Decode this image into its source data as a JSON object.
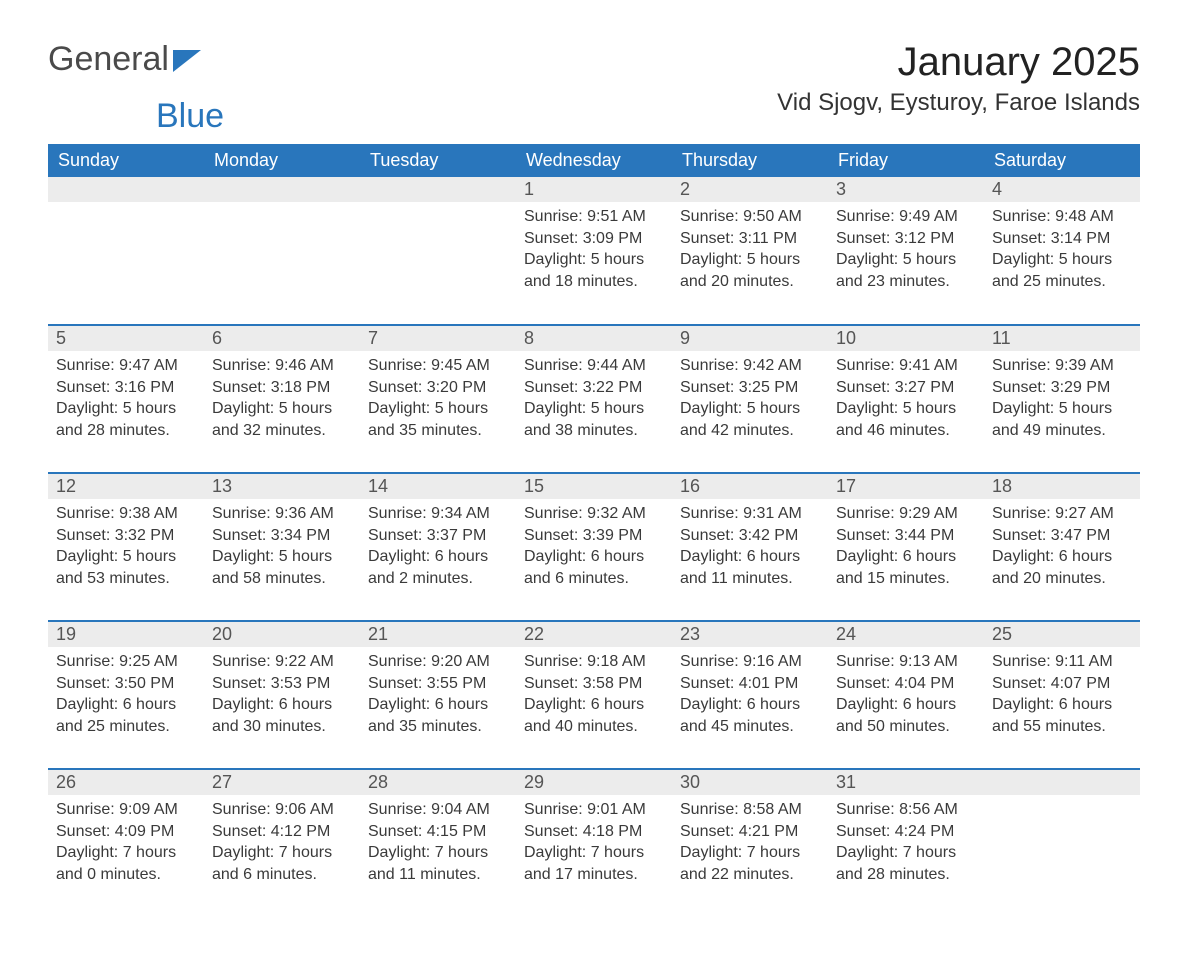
{
  "logo": {
    "text_general": "General",
    "text_blue": "Blue",
    "accent_color": "#2976bc"
  },
  "title": {
    "month": "January 2025",
    "location": "Vid Sjogv, Eysturoy, Faroe Islands"
  },
  "styling": {
    "header_bg": "#2976bc",
    "header_text": "#ffffff",
    "daynum_bg": "#ececec",
    "week_border": "#2976bc",
    "body_text": "#3a3a3a",
    "page_bg": "#ffffff",
    "header_fontsize": 18,
    "body_fontsize": 16,
    "title_fontsize": 40,
    "location_fontsize": 24
  },
  "weekdays": [
    "Sunday",
    "Monday",
    "Tuesday",
    "Wednesday",
    "Thursday",
    "Friday",
    "Saturday"
  ],
  "weeks": [
    [
      {
        "n": "",
        "sr": "",
        "ss": "",
        "dl": ""
      },
      {
        "n": "",
        "sr": "",
        "ss": "",
        "dl": ""
      },
      {
        "n": "",
        "sr": "",
        "ss": "",
        "dl": ""
      },
      {
        "n": "1",
        "sr": "Sunrise: 9:51 AM",
        "ss": "Sunset: 3:09 PM",
        "dl": "Daylight: 5 hours and 18 minutes."
      },
      {
        "n": "2",
        "sr": "Sunrise: 9:50 AM",
        "ss": "Sunset: 3:11 PM",
        "dl": "Daylight: 5 hours and 20 minutes."
      },
      {
        "n": "3",
        "sr": "Sunrise: 9:49 AM",
        "ss": "Sunset: 3:12 PM",
        "dl": "Daylight: 5 hours and 23 minutes."
      },
      {
        "n": "4",
        "sr": "Sunrise: 9:48 AM",
        "ss": "Sunset: 3:14 PM",
        "dl": "Daylight: 5 hours and 25 minutes."
      }
    ],
    [
      {
        "n": "5",
        "sr": "Sunrise: 9:47 AM",
        "ss": "Sunset: 3:16 PM",
        "dl": "Daylight: 5 hours and 28 minutes."
      },
      {
        "n": "6",
        "sr": "Sunrise: 9:46 AM",
        "ss": "Sunset: 3:18 PM",
        "dl": "Daylight: 5 hours and 32 minutes."
      },
      {
        "n": "7",
        "sr": "Sunrise: 9:45 AM",
        "ss": "Sunset: 3:20 PM",
        "dl": "Daylight: 5 hours and 35 minutes."
      },
      {
        "n": "8",
        "sr": "Sunrise: 9:44 AM",
        "ss": "Sunset: 3:22 PM",
        "dl": "Daylight: 5 hours and 38 minutes."
      },
      {
        "n": "9",
        "sr": "Sunrise: 9:42 AM",
        "ss": "Sunset: 3:25 PM",
        "dl": "Daylight: 5 hours and 42 minutes."
      },
      {
        "n": "10",
        "sr": "Sunrise: 9:41 AM",
        "ss": "Sunset: 3:27 PM",
        "dl": "Daylight: 5 hours and 46 minutes."
      },
      {
        "n": "11",
        "sr": "Sunrise: 9:39 AM",
        "ss": "Sunset: 3:29 PM",
        "dl": "Daylight: 5 hours and 49 minutes."
      }
    ],
    [
      {
        "n": "12",
        "sr": "Sunrise: 9:38 AM",
        "ss": "Sunset: 3:32 PM",
        "dl": "Daylight: 5 hours and 53 minutes."
      },
      {
        "n": "13",
        "sr": "Sunrise: 9:36 AM",
        "ss": "Sunset: 3:34 PM",
        "dl": "Daylight: 5 hours and 58 minutes."
      },
      {
        "n": "14",
        "sr": "Sunrise: 9:34 AM",
        "ss": "Sunset: 3:37 PM",
        "dl": "Daylight: 6 hours and 2 minutes."
      },
      {
        "n": "15",
        "sr": "Sunrise: 9:32 AM",
        "ss": "Sunset: 3:39 PM",
        "dl": "Daylight: 6 hours and 6 minutes."
      },
      {
        "n": "16",
        "sr": "Sunrise: 9:31 AM",
        "ss": "Sunset: 3:42 PM",
        "dl": "Daylight: 6 hours and 11 minutes."
      },
      {
        "n": "17",
        "sr": "Sunrise: 9:29 AM",
        "ss": "Sunset: 3:44 PM",
        "dl": "Daylight: 6 hours and 15 minutes."
      },
      {
        "n": "18",
        "sr": "Sunrise: 9:27 AM",
        "ss": "Sunset: 3:47 PM",
        "dl": "Daylight: 6 hours and 20 minutes."
      }
    ],
    [
      {
        "n": "19",
        "sr": "Sunrise: 9:25 AM",
        "ss": "Sunset: 3:50 PM",
        "dl": "Daylight: 6 hours and 25 minutes."
      },
      {
        "n": "20",
        "sr": "Sunrise: 9:22 AM",
        "ss": "Sunset: 3:53 PM",
        "dl": "Daylight: 6 hours and 30 minutes."
      },
      {
        "n": "21",
        "sr": "Sunrise: 9:20 AM",
        "ss": "Sunset: 3:55 PM",
        "dl": "Daylight: 6 hours and 35 minutes."
      },
      {
        "n": "22",
        "sr": "Sunrise: 9:18 AM",
        "ss": "Sunset: 3:58 PM",
        "dl": "Daylight: 6 hours and 40 minutes."
      },
      {
        "n": "23",
        "sr": "Sunrise: 9:16 AM",
        "ss": "Sunset: 4:01 PM",
        "dl": "Daylight: 6 hours and 45 minutes."
      },
      {
        "n": "24",
        "sr": "Sunrise: 9:13 AM",
        "ss": "Sunset: 4:04 PM",
        "dl": "Daylight: 6 hours and 50 minutes."
      },
      {
        "n": "25",
        "sr": "Sunrise: 9:11 AM",
        "ss": "Sunset: 4:07 PM",
        "dl": "Daylight: 6 hours and 55 minutes."
      }
    ],
    [
      {
        "n": "26",
        "sr": "Sunrise: 9:09 AM",
        "ss": "Sunset: 4:09 PM",
        "dl": "Daylight: 7 hours and 0 minutes."
      },
      {
        "n": "27",
        "sr": "Sunrise: 9:06 AM",
        "ss": "Sunset: 4:12 PM",
        "dl": "Daylight: 7 hours and 6 minutes."
      },
      {
        "n": "28",
        "sr": "Sunrise: 9:04 AM",
        "ss": "Sunset: 4:15 PM",
        "dl": "Daylight: 7 hours and 11 minutes."
      },
      {
        "n": "29",
        "sr": "Sunrise: 9:01 AM",
        "ss": "Sunset: 4:18 PM",
        "dl": "Daylight: 7 hours and 17 minutes."
      },
      {
        "n": "30",
        "sr": "Sunrise: 8:58 AM",
        "ss": "Sunset: 4:21 PM",
        "dl": "Daylight: 7 hours and 22 minutes."
      },
      {
        "n": "31",
        "sr": "Sunrise: 8:56 AM",
        "ss": "Sunset: 4:24 PM",
        "dl": "Daylight: 7 hours and 28 minutes."
      },
      {
        "n": "",
        "sr": "",
        "ss": "",
        "dl": ""
      }
    ]
  ]
}
